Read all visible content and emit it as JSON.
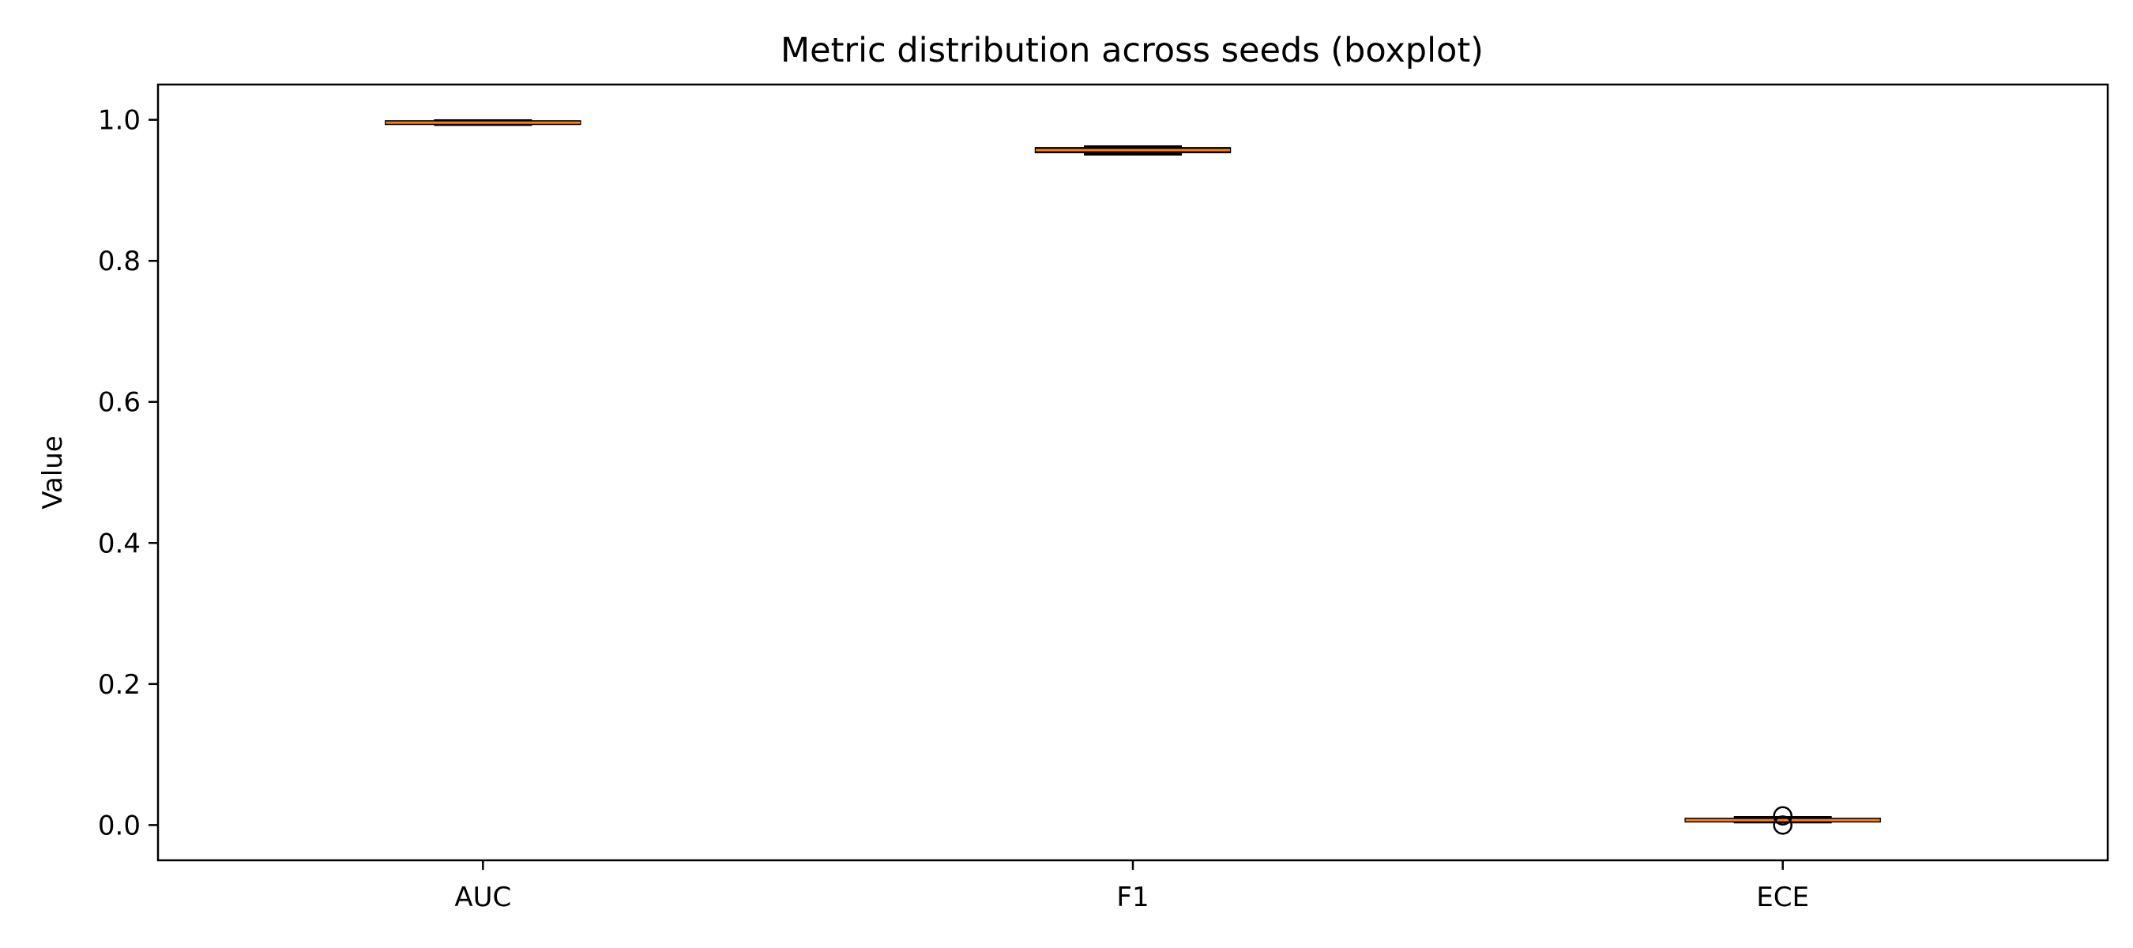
{
  "chart_data": {
    "type": "boxplot",
    "title": "Metric distribution across seeds (boxplot)",
    "xlabel": "",
    "ylabel": "Value",
    "categories": [
      "AUC",
      "F1",
      "ECE"
    ],
    "ylim": [
      -0.05,
      1.05
    ],
    "yticks": [
      0.0,
      0.2,
      0.4,
      0.6,
      0.8,
      1.0
    ],
    "ytick_labels": [
      "0.0",
      "0.2",
      "0.4",
      "0.6",
      "0.8",
      "1.0"
    ],
    "grid": false,
    "boxes": [
      {
        "category": "AUC",
        "whisker_low": 0.993,
        "q1": 0.994,
        "median": 0.996,
        "q3": 0.998,
        "whisker_high": 0.999,
        "outliers": []
      },
      {
        "category": "F1",
        "whisker_low": 0.951,
        "q1": 0.954,
        "median": 0.957,
        "q3": 0.96,
        "whisker_high": 0.962,
        "outliers": []
      },
      {
        "category": "ECE",
        "whisker_low": 0.004,
        "q1": 0.005,
        "median": 0.007,
        "q3": 0.009,
        "whisker_high": 0.011,
        "outliers": [
          0.0,
          0.013
        ]
      }
    ],
    "colors": {
      "box": "#000000",
      "median": "#ff7f0e",
      "flier": "#000000",
      "axis": "#000000"
    }
  }
}
